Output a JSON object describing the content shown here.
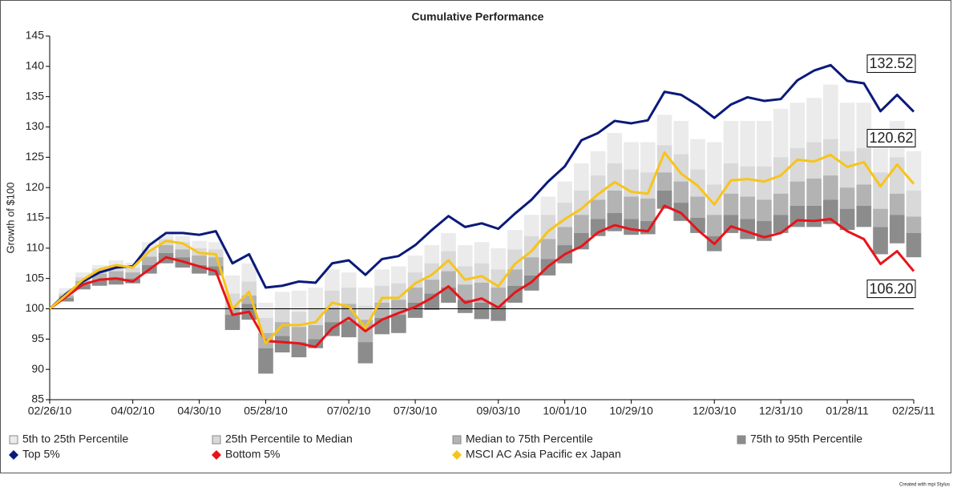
{
  "chart_data": {
    "type": "line",
    "title": "Cumulative Performance",
    "y_label": "Growth of $100",
    "credit": "Created with mpi Stylus",
    "categories": [
      "02/26/10",
      null,
      null,
      null,
      null,
      "04/02/10",
      null,
      null,
      null,
      "04/30/10",
      null,
      null,
      null,
      "05/28/10",
      null,
      null,
      null,
      null,
      "07/02/10",
      null,
      null,
      null,
      "07/30/10",
      null,
      null,
      null,
      null,
      "09/03/10",
      null,
      null,
      null,
      "10/01/10",
      null,
      null,
      null,
      "10/29/10",
      null,
      null,
      null,
      null,
      "12/03/10",
      null,
      null,
      null,
      "12/31/10",
      null,
      null,
      null,
      "01/28/11",
      null,
      null,
      null,
      "02/25/11"
    ],
    "ylim": [
      85,
      145
    ],
    "yticks": [
      85,
      90,
      95,
      100,
      105,
      110,
      115,
      120,
      125,
      130,
      135,
      140,
      145
    ],
    "hline": 100,
    "legend": "bottom",
    "bands": [
      {
        "name": "5th to 25th Percentile",
        "color": "#ebebeb",
        "values": [
          null,
          [
            102.6,
            103.4
          ],
          [
            105.2,
            106
          ],
          [
            106.6,
            107.2
          ],
          [
            107.2,
            108
          ],
          [
            106.8,
            107.6
          ],
          [
            109.8,
            111
          ],
          [
            111.5,
            112.2
          ],
          [
            111,
            112
          ],
          [
            110,
            111.2
          ],
          [
            109.8,
            111
          ],
          [
            102.5,
            105.5
          ],
          [
            104.5,
            107.5
          ],
          [
            98.5,
            101
          ],
          [
            100.2,
            102.8
          ],
          [
            99.5,
            103
          ],
          [
            100.2,
            103.5
          ],
          [
            103,
            106.5
          ],
          [
            103.5,
            106
          ],
          [
            100.5,
            103.5
          ],
          [
            103.8,
            106.5
          ],
          [
            104.2,
            107
          ],
          [
            106,
            108.8
          ],
          [
            107.5,
            110.5
          ],
          [
            109.5,
            112.5
          ],
          [
            107,
            110.5
          ],
          [
            107.5,
            111
          ],
          [
            106.5,
            110
          ],
          [
            109.8,
            113
          ],
          [
            112,
            115.5
          ],
          [
            115.5,
            118.5
          ],
          [
            117.5,
            121
          ],
          [
            119.5,
            124
          ],
          [
            122,
            126
          ],
          [
            124,
            129
          ],
          [
            123,
            127.5
          ],
          [
            122.5,
            127.5
          ],
          [
            127,
            132
          ],
          [
            125.5,
            131
          ],
          [
            123,
            128
          ],
          [
            120.5,
            127.5
          ],
          [
            124,
            131
          ],
          [
            123.5,
            131
          ],
          [
            123.5,
            131
          ],
          [
            125,
            133
          ],
          [
            126.5,
            134
          ],
          [
            127.5,
            134.8
          ],
          [
            128,
            137
          ],
          [
            126,
            134
          ],
          [
            126.5,
            134
          ],
          [
            122.5,
            129.5
          ],
          [
            125,
            131
          ],
          [
            119.5,
            126
          ]
        ]
      },
      {
        "name": "25th Percentile to Median",
        "color": "#d9d9d9",
        "values": [
          null,
          [
            102.2,
            102.6
          ],
          [
            104.6,
            105.2
          ],
          [
            105.8,
            106.6
          ],
          [
            106.2,
            107.2
          ],
          [
            106,
            106.8
          ],
          [
            108.6,
            109.8
          ],
          [
            110.5,
            111.5
          ],
          [
            109.8,
            111
          ],
          [
            108.8,
            110
          ],
          [
            108.5,
            109.8
          ],
          [
            100.3,
            102.5
          ],
          [
            102.2,
            104.5
          ],
          [
            96,
            98.5
          ],
          [
            97.8,
            100.2
          ],
          [
            97,
            99.5
          ],
          [
            97.3,
            100.2
          ],
          [
            100.2,
            103
          ],
          [
            100.8,
            103.5
          ],
          [
            98.2,
            100.5
          ],
          [
            101,
            103.8
          ],
          [
            101.5,
            104.2
          ],
          [
            103.5,
            106
          ],
          [
            104.8,
            107.5
          ],
          [
            106.2,
            109.5
          ],
          [
            104,
            107
          ],
          [
            104.3,
            107.5
          ],
          [
            103.5,
            106.5
          ],
          [
            106.5,
            109.8
          ],
          [
            108.5,
            112
          ],
          [
            111.5,
            115.5
          ],
          [
            113.5,
            117.5
          ],
          [
            115.5,
            119.5
          ],
          [
            118,
            122
          ],
          [
            119.5,
            124
          ],
          [
            118.5,
            123
          ],
          [
            118.2,
            122.5
          ],
          [
            122.5,
            127
          ],
          [
            121,
            125.5
          ],
          [
            118.5,
            123
          ],
          [
            115.5,
            120.5
          ],
          [
            119,
            124
          ],
          [
            118.5,
            123.5
          ],
          [
            118,
            123.5
          ],
          [
            119,
            125
          ],
          [
            121,
            126.5
          ],
          [
            121.5,
            127.5
          ],
          [
            122,
            128
          ],
          [
            120,
            126
          ],
          [
            120.5,
            126.5
          ],
          [
            116.5,
            122.5
          ],
          [
            119,
            125
          ],
          [
            115.2,
            119.5
          ]
        ]
      },
      {
        "name": "Median to 75th Percentile",
        "color": "#b3b3b3",
        "values": [
          null,
          [
            101.8,
            102.2
          ],
          [
            104,
            104.6
          ],
          [
            104.8,
            105.8
          ],
          [
            105.2,
            106.2
          ],
          [
            105,
            106
          ],
          [
            107.2,
            108.6
          ],
          [
            109.2,
            110.5
          ],
          [
            108.5,
            109.8
          ],
          [
            107.2,
            108.8
          ],
          [
            107,
            108.5
          ],
          [
            99,
            100.3
          ],
          [
            100.8,
            102.2
          ],
          [
            93.5,
            96
          ],
          [
            95.5,
            97.8
          ],
          [
            94.5,
            97
          ],
          [
            95,
            97.3
          ],
          [
            97.8,
            100.2
          ],
          [
            98,
            100.8
          ],
          [
            94.5,
            98.2
          ],
          [
            98.5,
            101
          ],
          [
            99,
            101.5
          ],
          [
            101,
            103.5
          ],
          [
            102.5,
            104.8
          ],
          [
            103.5,
            106.2
          ],
          [
            101.5,
            104
          ],
          [
            101,
            104.3
          ],
          [
            100.5,
            103.5
          ],
          [
            103.8,
            106.5
          ],
          [
            105.5,
            108.5
          ],
          [
            108.2,
            111.5
          ],
          [
            110.5,
            113.5
          ],
          [
            112.5,
            115.5
          ],
          [
            114.8,
            118
          ],
          [
            115.8,
            119.5
          ],
          [
            114.8,
            118.5
          ],
          [
            114.5,
            118.2
          ],
          [
            119.5,
            122.5
          ],
          [
            117.5,
            121
          ],
          [
            115,
            118.5
          ],
          [
            112,
            115.5
          ],
          [
            115.5,
            119
          ],
          [
            114.8,
            118.5
          ],
          [
            114.5,
            118
          ],
          [
            115.5,
            119
          ],
          [
            117,
            121
          ],
          [
            117,
            121.5
          ],
          [
            118,
            122
          ],
          [
            116.5,
            120
          ],
          [
            117,
            120.5
          ],
          [
            113.5,
            116.5
          ],
          [
            115.5,
            119
          ],
          [
            112.5,
            115.2
          ]
        ]
      },
      {
        "name": "75th to 95th Percentile",
        "color": "#8c8c8c",
        "values": [
          null,
          [
            101.2,
            101.8
          ],
          [
            103.2,
            104
          ],
          [
            103.8,
            104.8
          ],
          [
            104,
            105.2
          ],
          [
            104.2,
            105
          ],
          [
            105.8,
            107.2
          ],
          [
            107.5,
            109.2
          ],
          [
            106.8,
            108.5
          ],
          [
            105.8,
            107.2
          ],
          [
            105.5,
            107
          ],
          [
            96.5,
            99
          ],
          [
            98.2,
            100.8
          ],
          [
            89.3,
            93.5
          ],
          [
            92.8,
            95.5
          ],
          [
            92,
            94.5
          ],
          [
            93.5,
            95
          ],
          [
            95.5,
            97.8
          ],
          [
            95.3,
            98
          ],
          [
            91,
            94.5
          ],
          [
            95.8,
            98.5
          ],
          [
            96,
            99
          ],
          [
            98.5,
            101
          ],
          [
            99.8,
            102.5
          ],
          [
            101,
            103.5
          ],
          [
            99.3,
            101.5
          ],
          [
            98.3,
            101
          ],
          [
            98,
            100.5
          ],
          [
            101,
            103.8
          ],
          [
            103,
            105.5
          ],
          [
            105.5,
            108.2
          ],
          [
            107.5,
            110.5
          ],
          [
            109.8,
            112.5
          ],
          [
            112,
            114.8
          ],
          [
            112.8,
            115.8
          ],
          [
            112.2,
            114.8
          ],
          [
            112.3,
            114.5
          ],
          [
            116.5,
            119.5
          ],
          [
            114.5,
            117.5
          ],
          [
            112.5,
            115
          ],
          [
            109.5,
            112
          ],
          [
            112.5,
            115.5
          ],
          [
            111.5,
            114.8
          ],
          [
            111.2,
            114.5
          ],
          [
            112.5,
            115.5
          ],
          [
            113.5,
            117
          ],
          [
            113.5,
            117
          ],
          [
            114,
            118
          ],
          [
            113,
            116.5
          ],
          [
            113.5,
            117
          ],
          [
            109,
            113.5
          ],
          [
            110.8,
            115.5
          ],
          [
            108.5,
            112.5
          ]
        ]
      }
    ],
    "series": [
      {
        "name": "Top 5%",
        "color": "#0a1a7a",
        "values": [
          100,
          102.5,
          104.5,
          106,
          106.8,
          107,
          110.5,
          112.5,
          112.5,
          112.2,
          112.8,
          107.5,
          109,
          103.5,
          103.8,
          104.5,
          104.3,
          107.5,
          108,
          105.6,
          108.2,
          108.7,
          110.5,
          113,
          115.3,
          113.5,
          114.1,
          113.2,
          115.7,
          118,
          121,
          123.5,
          127.8,
          129,
          131,
          130.6,
          131.1,
          135.8,
          135.3,
          133.6,
          131.5,
          133.7,
          134.9,
          134.3,
          134.6,
          137.7,
          139.3,
          140.2,
          137.6,
          137.2,
          132.6,
          135.3,
          132.52
        ],
        "value_labels": [
          null,
          null,
          null,
          null,
          null,
          null,
          null,
          null,
          null,
          null,
          null,
          null,
          null,
          null,
          null,
          null,
          null,
          null,
          null,
          null,
          null,
          null,
          null,
          null,
          null,
          null,
          null,
          null,
          null,
          null,
          null,
          null,
          null,
          null,
          null,
          null,
          null,
          null,
          null,
          null,
          null,
          null,
          null,
          null,
          null,
          null,
          null,
          null,
          null,
          null,
          null,
          null,
          "132.52"
        ]
      },
      {
        "name": "Bottom 5%",
        "color": "#e8141a",
        "values": [
          100,
          102,
          104,
          104.8,
          105,
          104.5,
          106.5,
          108.5,
          107.8,
          107,
          106.2,
          99,
          99.5,
          94.7,
          94.5,
          94.3,
          93.7,
          96.8,
          98.5,
          96.3,
          98.2,
          99.3,
          100.3,
          101.8,
          103.7,
          101,
          101.7,
          100.2,
          102.7,
          104.4,
          107,
          109,
          110.3,
          112.6,
          113.8,
          113.1,
          112.8,
          117,
          115.8,
          113,
          110.7,
          113.6,
          112.7,
          111.8,
          112.5,
          114.6,
          114.5,
          114.8,
          112.8,
          111.5,
          107.4,
          109.5,
          106.2
        ],
        "value_labels": [
          null,
          null,
          null,
          null,
          null,
          null,
          null,
          null,
          null,
          null,
          null,
          null,
          null,
          null,
          null,
          null,
          null,
          null,
          null,
          null,
          null,
          null,
          null,
          null,
          null,
          null,
          null,
          null,
          null,
          null,
          null,
          null,
          null,
          null,
          null,
          null,
          null,
          null,
          null,
          null,
          null,
          null,
          null,
          null,
          null,
          null,
          null,
          null,
          null,
          null,
          null,
          null,
          "106.20"
        ]
      },
      {
        "name": "MSCI AC Asia Pacific ex Japan",
        "color": "#f7c41a",
        "values": [
          100,
          102.3,
          104.8,
          106.5,
          107.2,
          106.8,
          109.5,
          111.2,
          110.8,
          109.2,
          109,
          100,
          102.8,
          94.3,
          97.3,
          97.3,
          97.8,
          101,
          100.4,
          96.8,
          101.8,
          101.8,
          104.2,
          105.6,
          108,
          104.8,
          105.4,
          103.7,
          107.4,
          109.5,
          112.8,
          114.8,
          116.5,
          118.9,
          120.9,
          119.3,
          119,
          125.8,
          122.3,
          120.3,
          117.2,
          121.2,
          121.4,
          121,
          122,
          124.6,
          124.3,
          125.4,
          123.4,
          124.2,
          120.2,
          123.8,
          120.62
        ],
        "value_labels": [
          null,
          null,
          null,
          null,
          null,
          null,
          null,
          null,
          null,
          null,
          null,
          null,
          null,
          null,
          null,
          null,
          null,
          null,
          null,
          null,
          null,
          null,
          null,
          null,
          null,
          null,
          null,
          null,
          null,
          null,
          null,
          null,
          null,
          null,
          null,
          null,
          null,
          null,
          null,
          null,
          null,
          null,
          null,
          null,
          null,
          null,
          null,
          null,
          null,
          null,
          null,
          null,
          "120.62"
        ]
      }
    ]
  }
}
